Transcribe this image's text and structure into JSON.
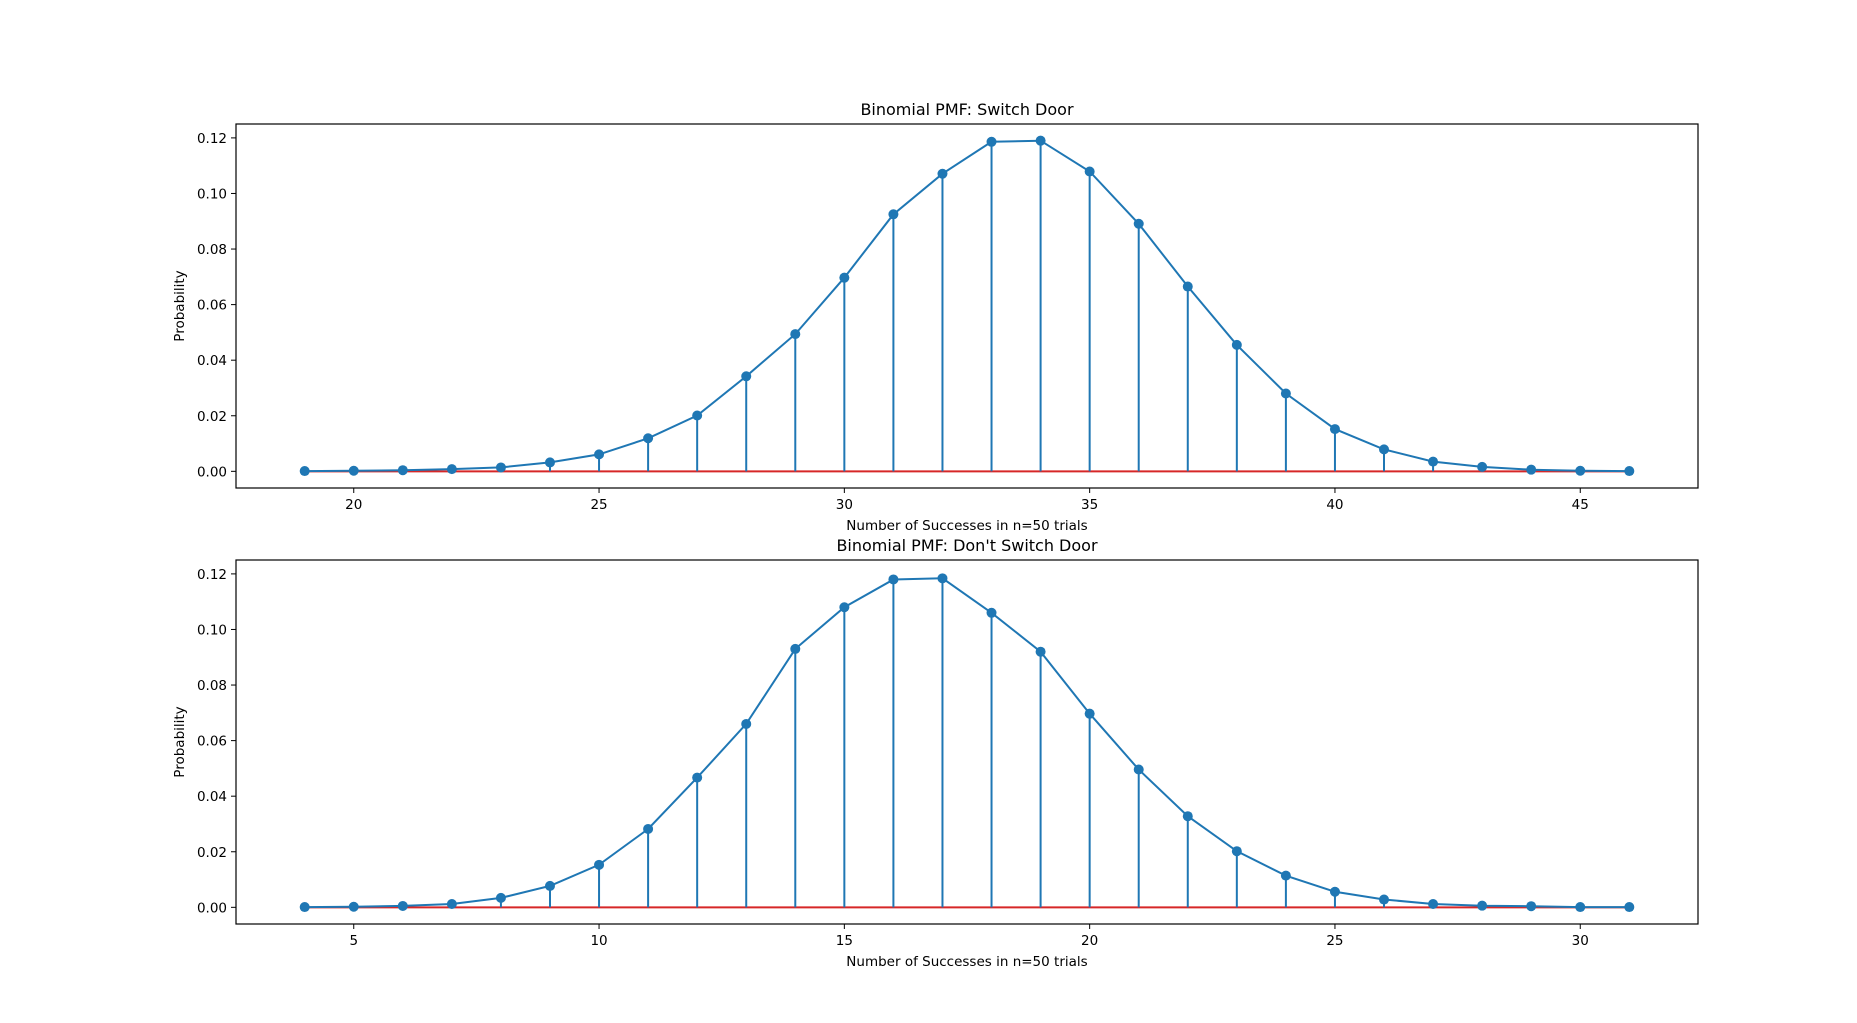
{
  "chart_data": [
    {
      "type": "stem",
      "title": "Binomial PMF: Switch Door",
      "xlabel": "Number of Successes in n=50 trials",
      "ylabel": "Probability",
      "xlim": [
        17.6,
        47.4
      ],
      "ylim": [
        -0.006,
        0.125
      ],
      "xticks": [
        20,
        25,
        30,
        35,
        40,
        45
      ],
      "yticks": [
        0.0,
        0.02,
        0.04,
        0.06,
        0.08,
        0.1,
        0.12
      ],
      "x": [
        19,
        20,
        21,
        22,
        23,
        24,
        25,
        26,
        27,
        28,
        29,
        30,
        31,
        32,
        33,
        34,
        35,
        36,
        37,
        38,
        39,
        40,
        41,
        42,
        43,
        44,
        45,
        46
      ],
      "values": [
        0.0001,
        0.0002,
        0.0004,
        0.0008,
        0.0014,
        0.0032,
        0.0061,
        0.0119,
        0.0201,
        0.0342,
        0.0494,
        0.0697,
        0.0925,
        0.1071,
        0.1186,
        0.119,
        0.1079,
        0.0891,
        0.0665,
        0.0455,
        0.028,
        0.0152,
        0.0079,
        0.0035,
        0.0016,
        0.0006,
        0.0002,
        0.0001
      ],
      "colors": {
        "stem": "#1f77b4",
        "baseline": "#d62728"
      }
    },
    {
      "type": "stem",
      "title": "Binomial PMF: Don't Switch Door",
      "xlabel": "Number of Successes in n=50 trials",
      "ylabel": "Probability",
      "xlim": [
        2.6,
        32.4
      ],
      "ylim": [
        -0.006,
        0.125
      ],
      "xticks": [
        5,
        10,
        15,
        20,
        25,
        30
      ],
      "yticks": [
        0.0,
        0.02,
        0.04,
        0.06,
        0.08,
        0.1,
        0.12
      ],
      "x": [
        4,
        5,
        6,
        7,
        8,
        9,
        10,
        11,
        12,
        13,
        14,
        15,
        16,
        17,
        18,
        19,
        20,
        21,
        22,
        23,
        24,
        25,
        26,
        27,
        28,
        29,
        30,
        31
      ],
      "values": [
        0.0001,
        0.0002,
        0.0005,
        0.0012,
        0.0034,
        0.0077,
        0.0153,
        0.0282,
        0.0467,
        0.066,
        0.093,
        0.108,
        0.118,
        0.1184,
        0.106,
        0.092,
        0.0697,
        0.0496,
        0.0328,
        0.0202,
        0.0114,
        0.0056,
        0.0028,
        0.0012,
        0.0006,
        0.0004,
        0.0001,
        0.0001
      ],
      "colors": {
        "stem": "#1f77b4",
        "baseline": "#d62728"
      }
    }
  ]
}
